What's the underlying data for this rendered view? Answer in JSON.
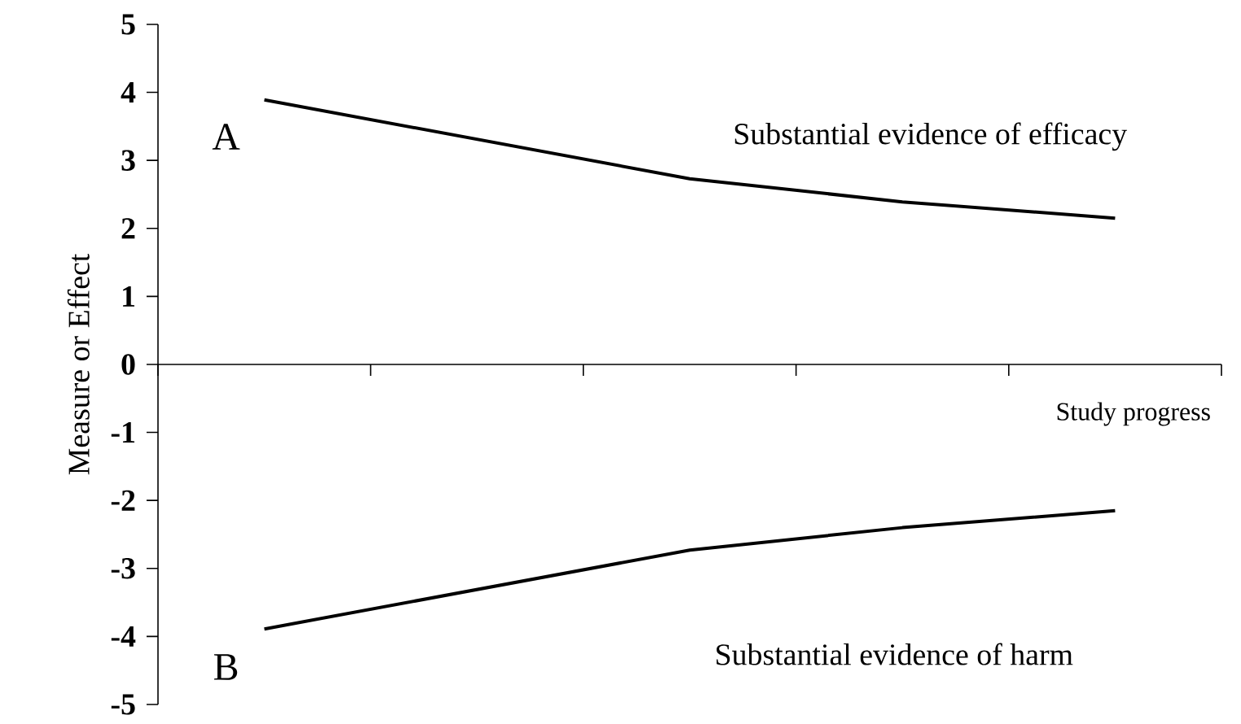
{
  "chart_data": {
    "type": "line",
    "xlabel": "Study progress",
    "ylabel": "Measure or Effect",
    "categories": [
      null,
      null,
      null,
      null,
      null
    ],
    "ylim": [
      -5,
      5
    ],
    "yticks": [
      -5,
      -4,
      -3,
      -2,
      -1,
      0,
      1,
      2,
      3,
      4,
      5
    ],
    "series": [
      {
        "color": "#000000",
        "values": [
          3.89,
          null,
          2.73,
          2.39,
          2.15
        ]
      },
      {
        "color": "#000000",
        "values": [
          -3.89,
          null,
          -2.73,
          -2.4,
          -2.15
        ]
      }
    ],
    "annotations": [
      "A",
      "Substantial evidence of efficacy",
      "B",
      "Substantial evidence of harm"
    ],
    "legend": false,
    "marker": "none",
    "line_style": "solid"
  }
}
